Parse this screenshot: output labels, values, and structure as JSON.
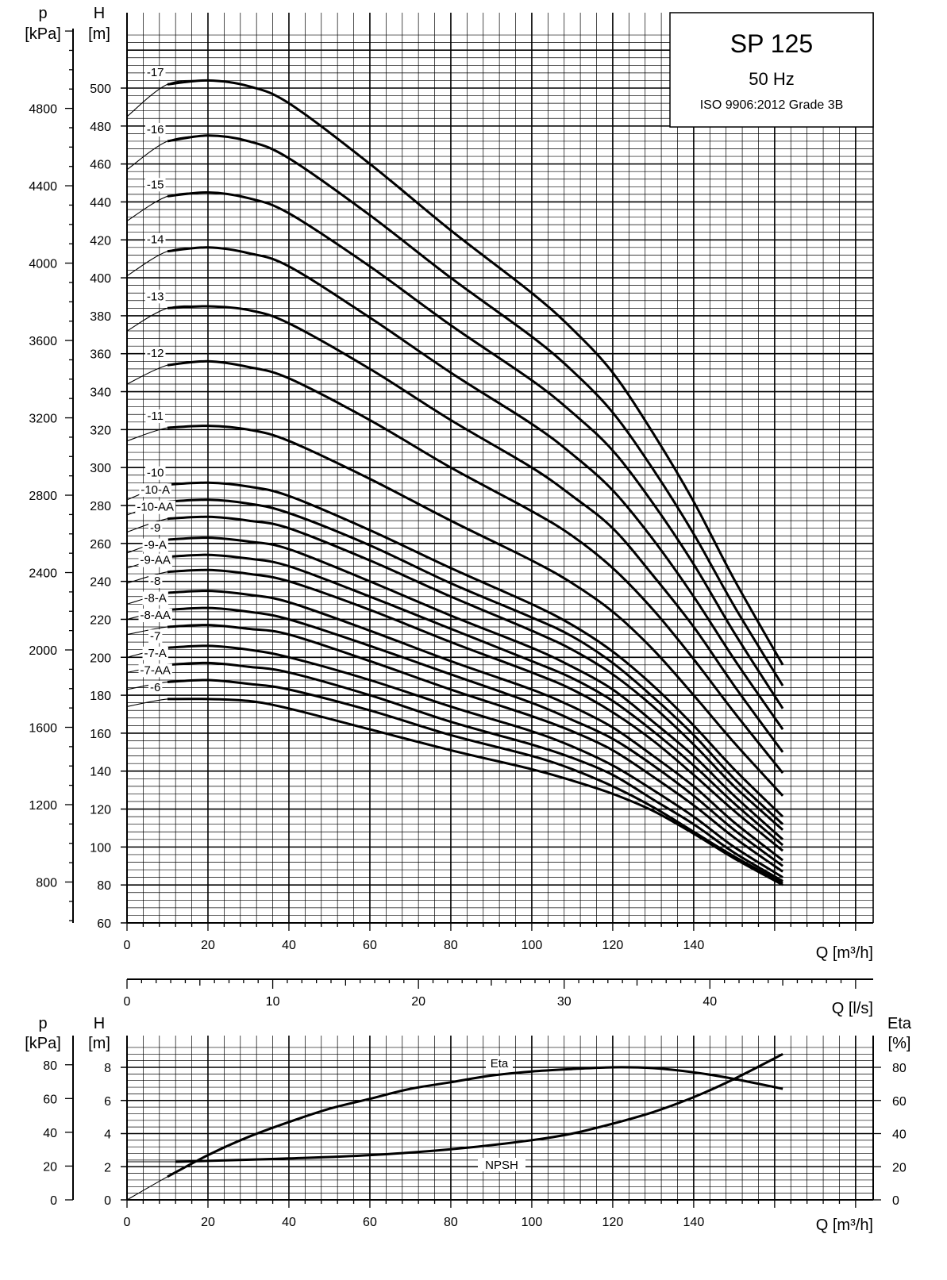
{
  "title": {
    "model": "SP 125",
    "frequency": "50 Hz",
    "standard": "ISO 9906:2012 Grade 3B"
  },
  "axis_labels": {
    "p_top": "p",
    "p_unit_top": "[kPa]",
    "h_top": "H",
    "h_unit_top": "[m]",
    "q_main": "Q [m³/h]",
    "q_ls": "Q [l/s]",
    "p_bottom": "p",
    "p_unit_bottom": "[kPa]",
    "h_bottom": "H",
    "h_unit_bottom": "[m]",
    "eta": "Eta",
    "eta_unit": "[%]",
    "q_bottom": "Q [m³/h]"
  },
  "curve_names": {
    "eta": "Eta",
    "npsh": "NPSH"
  },
  "chart_data": [
    {
      "type": "line",
      "title": "SP 125",
      "subtitle": "50 Hz, ISO 9906:2012 Grade 3B",
      "xlabel": "Q [m³/h]",
      "ylabel": "H [m]",
      "ylabel_secondary": "p [kPa]",
      "xlim": [
        0,
        180
      ],
      "ylim": [
        60,
        530
      ],
      "xticks": [
        0,
        20,
        40,
        60,
        80,
        100,
        120,
        140
      ],
      "yticks": [
        60,
        80,
        100,
        120,
        140,
        160,
        180,
        200,
        220,
        240,
        260,
        280,
        300,
        320,
        340,
        360,
        380,
        400,
        420,
        440,
        460,
        480,
        500
      ],
      "pticks": [
        800,
        1200,
        1600,
        2000,
        2400,
        2800,
        3200,
        3600,
        4000,
        4400,
        4800
      ],
      "secondary_xaxis": {
        "label": "Q [l/s]",
        "xlim": [
          0,
          50
        ],
        "xticks": [
          0,
          10,
          20,
          30,
          40
        ]
      },
      "grid": true,
      "series": [
        {
          "name": "-17",
          "x": [
            0,
            10,
            20,
            30,
            40,
            60,
            80,
            100,
            110,
            120,
            130,
            140,
            150,
            162
          ],
          "y": [
            485,
            502,
            504,
            501,
            492,
            460,
            425,
            392,
            373,
            350,
            318,
            282,
            241,
            196
          ]
        },
        {
          "name": "-16",
          "x": [
            0,
            10,
            20,
            30,
            40,
            60,
            80,
            100,
            110,
            120,
            130,
            140,
            150,
            162
          ],
          "y": [
            457,
            472,
            475,
            472,
            463,
            433,
            400,
            369,
            351,
            329,
            299,
            265,
            227,
            185
          ]
        },
        {
          "name": "-15",
          "x": [
            0,
            10,
            20,
            30,
            40,
            60,
            80,
            100,
            110,
            120,
            130,
            140,
            150,
            162
          ],
          "y": [
            430,
            443,
            445,
            442,
            434,
            406,
            375,
            346,
            329,
            309,
            281,
            249,
            213,
            173
          ]
        },
        {
          "name": "-14",
          "x": [
            0,
            10,
            20,
            30,
            40,
            60,
            80,
            100,
            110,
            120,
            130,
            140,
            150,
            162
          ],
          "y": [
            401,
            414,
            416,
            413,
            406,
            379,
            350,
            323,
            307,
            288,
            262,
            232,
            199,
            162
          ]
        },
        {
          "name": "-13",
          "x": [
            0,
            10,
            20,
            30,
            40,
            60,
            80,
            100,
            110,
            120,
            130,
            140,
            150,
            162
          ],
          "y": [
            372,
            384,
            385,
            383,
            376,
            352,
            325,
            300,
            285,
            268,
            243,
            216,
            185,
            150
          ]
        },
        {
          "name": "-12",
          "x": [
            0,
            10,
            20,
            30,
            40,
            60,
            80,
            100,
            110,
            120,
            130,
            140,
            150,
            162
          ],
          "y": [
            344,
            354,
            356,
            353,
            347,
            325,
            300,
            277,
            264,
            247,
            225,
            199,
            171,
            139
          ]
        },
        {
          "name": "-11",
          "x": [
            0,
            10,
            20,
            30,
            40,
            60,
            80,
            100,
            110,
            120,
            130,
            140,
            150,
            162
          ],
          "y": [
            314,
            321,
            322,
            320,
            314,
            294,
            272,
            251,
            239,
            224,
            204,
            180,
            155,
            127
          ]
        },
        {
          "name": "-10",
          "x": [
            0,
            10,
            20,
            30,
            40,
            60,
            80,
            100,
            110,
            120,
            130,
            140,
            150,
            162
          ],
          "y": [
            283,
            291,
            292,
            290,
            285,
            267,
            247,
            228,
            217,
            203,
            185,
            164,
            141,
            116
          ]
        },
        {
          "name": "-10-A",
          "x": [
            0,
            10,
            20,
            30,
            40,
            60,
            80,
            100,
            110,
            120,
            130,
            140,
            150,
            162
          ],
          "y": [
            275,
            282,
            283,
            281,
            276,
            259,
            239,
            221,
            211,
            197,
            179,
            159,
            136,
            112
          ]
        },
        {
          "name": "-10-AA",
          "x": [
            0,
            10,
            20,
            30,
            40,
            60,
            80,
            100,
            110,
            120,
            130,
            140,
            150,
            162
          ],
          "y": [
            266,
            273,
            274,
            272,
            268,
            251,
            232,
            214,
            204,
            191,
            174,
            154,
            132,
            109
          ]
        },
        {
          "name": "-9",
          "x": [
            0,
            10,
            20,
            30,
            40,
            60,
            80,
            100,
            110,
            120,
            130,
            140,
            150,
            162
          ],
          "y": [
            255,
            262,
            263,
            261,
            257,
            240,
            222,
            205,
            195,
            183,
            166,
            148,
            127,
            104
          ]
        },
        {
          "name": "-9-A",
          "x": [
            0,
            10,
            20,
            30,
            40,
            60,
            80,
            100,
            110,
            120,
            130,
            140,
            150,
            162
          ],
          "y": [
            247,
            253,
            254,
            252,
            248,
            232,
            215,
            198,
            189,
            177,
            161,
            143,
            123,
            101
          ]
        },
        {
          "name": "-9-AA",
          "x": [
            0,
            10,
            20,
            30,
            40,
            60,
            80,
            100,
            110,
            120,
            130,
            140,
            150,
            162
          ],
          "y": [
            239,
            245,
            246,
            244,
            240,
            225,
            208,
            192,
            183,
            171,
            156,
            138,
            119,
            98
          ]
        },
        {
          "name": "-8",
          "x": [
            0,
            10,
            20,
            30,
            40,
            60,
            80,
            100,
            110,
            120,
            130,
            140,
            150,
            162
          ],
          "y": [
            228,
            234,
            235,
            233,
            229,
            214,
            198,
            183,
            174,
            163,
            148,
            132,
            113,
            93
          ]
        },
        {
          "name": "-8-A",
          "x": [
            0,
            10,
            20,
            30,
            40,
            60,
            80,
            100,
            110,
            120,
            130,
            140,
            150,
            162
          ],
          "y": [
            220,
            225,
            226,
            224,
            220,
            206,
            191,
            176,
            167,
            157,
            143,
            127,
            109,
            90
          ]
        },
        {
          "name": "-8-AA",
          "x": [
            0,
            10,
            20,
            30,
            40,
            60,
            80,
            100,
            110,
            120,
            130,
            140,
            150,
            162
          ],
          "y": [
            212,
            216,
            217,
            215,
            212,
            198,
            183,
            169,
            161,
            151,
            137,
            122,
            105,
            87
          ]
        },
        {
          "name": "-7",
          "x": [
            0,
            10,
            20,
            30,
            40,
            60,
            80,
            100,
            110,
            120,
            130,
            140,
            150,
            162
          ],
          "y": [
            200,
            205,
            206,
            204,
            200,
            188,
            174,
            161,
            153,
            143,
            130,
            116,
            100,
            84
          ]
        },
        {
          "name": "-7-A",
          "x": [
            0,
            10,
            20,
            30,
            40,
            60,
            80,
            100,
            110,
            120,
            130,
            140,
            150,
            162
          ],
          "y": [
            192,
            196,
            197,
            195,
            192,
            180,
            166,
            154,
            147,
            138,
            125,
            112,
            97,
            82
          ]
        },
        {
          "name": "-7-AA",
          "x": [
            0,
            10,
            20,
            30,
            40,
            60,
            80,
            100,
            110,
            120,
            130,
            140,
            150,
            162
          ],
          "y": [
            183,
            187,
            188,
            186,
            183,
            172,
            159,
            148,
            141,
            132,
            121,
            108,
            95,
            81
          ]
        },
        {
          "name": "-6",
          "x": [
            0,
            10,
            20,
            30,
            40,
            60,
            80,
            100,
            110,
            120,
            130,
            140,
            150,
            162
          ],
          "y": [
            174,
            178,
            178,
            177,
            173,
            162,
            151,
            141,
            135,
            128,
            119,
            107,
            94,
            80
          ]
        }
      ]
    },
    {
      "type": "line",
      "xlabel": "Q [m³/h]",
      "ylabel": "H [m]",
      "ylabel_secondary": "p [kPa]",
      "ylabel_right": "Eta [%]",
      "xlim": [
        0,
        180
      ],
      "ylim": [
        0,
        9
      ],
      "xticks": [
        0,
        20,
        40,
        60,
        80,
        100,
        120,
        140
      ],
      "yticks": [
        0,
        2,
        4,
        6,
        8
      ],
      "pticks": [
        0,
        20,
        40,
        60,
        80
      ],
      "eta_ticks": [
        0,
        20,
        40,
        60,
        80
      ],
      "grid": true,
      "series": [
        {
          "name": "Eta",
          "axis": "eta_percent",
          "x": [
            0,
            10,
            20,
            30,
            40,
            50,
            60,
            70,
            80,
            90,
            100,
            110,
            120,
            130,
            140,
            150,
            162
          ],
          "y": [
            0,
            14,
            27,
            38,
            47,
            55,
            61,
            67,
            71,
            75,
            77.5,
            79,
            80,
            79.5,
            77,
            73,
            67
          ]
        },
        {
          "name": "NPSH",
          "axis": "head_m",
          "x": [
            12,
            20,
            40,
            60,
            80,
            100,
            110,
            120,
            130,
            140,
            150,
            162
          ],
          "y": [
            2.3,
            2.35,
            2.5,
            2.7,
            3.05,
            3.6,
            4.0,
            4.6,
            5.3,
            6.2,
            7.3,
            8.8
          ]
        }
      ]
    }
  ]
}
